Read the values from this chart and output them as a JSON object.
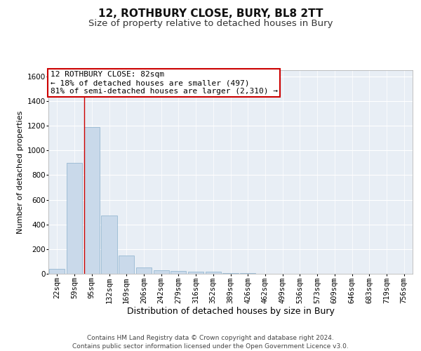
{
  "title": "12, ROTHBURY CLOSE, BURY, BL8 2TT",
  "subtitle": "Size of property relative to detached houses in Bury",
  "xlabel": "Distribution of detached houses by size in Bury",
  "ylabel": "Number of detached properties",
  "footer_line1": "Contains HM Land Registry data © Crown copyright and database right 2024.",
  "footer_line2": "Contains public sector information licensed under the Open Government Licence v3.0.",
  "bin_labels": [
    "22sqm",
    "59sqm",
    "95sqm",
    "132sqm",
    "169sqm",
    "206sqm",
    "242sqm",
    "279sqm",
    "316sqm",
    "352sqm",
    "389sqm",
    "426sqm",
    "462sqm",
    "499sqm",
    "536sqm",
    "573sqm",
    "609sqm",
    "646sqm",
    "683sqm",
    "719sqm",
    "756sqm"
  ],
  "bar_values": [
    40,
    900,
    1190,
    470,
    150,
    50,
    30,
    20,
    15,
    15,
    5,
    5,
    0,
    0,
    0,
    0,
    0,
    0,
    0,
    0,
    0
  ],
  "bar_color": "#c9d9ea",
  "bar_edge_color": "#8ab0cc",
  "plot_bg_color": "#e8eef5",
  "red_line_x": 1.55,
  "annotation_line1": "12 ROTHBURY CLOSE: 82sqm",
  "annotation_line2": "← 18% of detached houses are smaller (497)",
  "annotation_line3": "81% of semi-detached houses are larger (2,310) →",
  "annotation_box_color": "#ffffff",
  "annotation_border_color": "#cc0000",
  "vline_color": "#cc0000",
  "ylim": [
    0,
    1650
  ],
  "yticks": [
    0,
    200,
    400,
    600,
    800,
    1000,
    1200,
    1400,
    1600
  ],
  "title_fontsize": 11,
  "subtitle_fontsize": 9.5,
  "xlabel_fontsize": 9,
  "ylabel_fontsize": 8,
  "tick_fontsize": 7.5,
  "annotation_fontsize": 8,
  "footer_fontsize": 6.5
}
